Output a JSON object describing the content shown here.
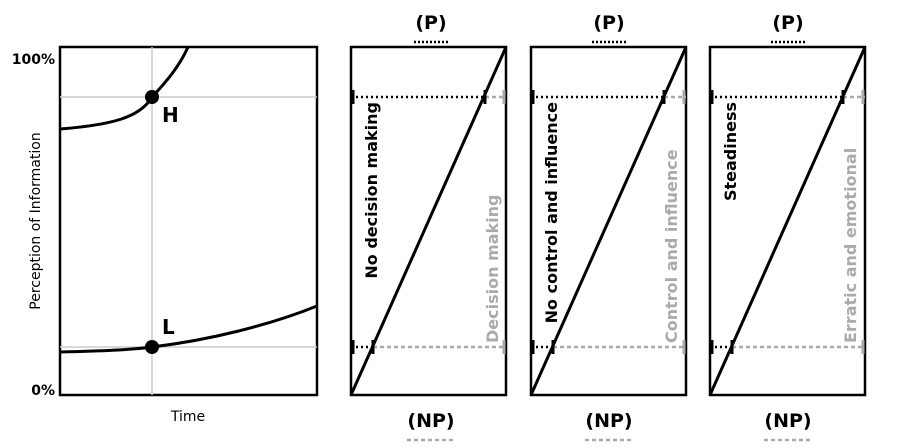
{
  "left_panel": {
    "y_axis_label": "Perception of Information",
    "y_top_label": "100%",
    "y_bottom_label": "0%",
    "x_axis_label": "Time",
    "point_high_label": "H",
    "point_low_label": "L"
  },
  "panels": [
    {
      "top_label": "(P)",
      "bottom_label": "(NP)",
      "upper_text": "No decision making",
      "lower_text": "Decision making"
    },
    {
      "top_label": "(P)",
      "bottom_label": "(NP)",
      "upper_text": "No control and influence",
      "lower_text": "Control and influence"
    },
    {
      "top_label": "(P)",
      "bottom_label": "(NP)",
      "upper_text": "Steadiness",
      "lower_text": "Erratic and emotional"
    }
  ],
  "colors": {
    "ink": "#000000",
    "muted": "#aaaaaa",
    "grid": "#cccccc"
  }
}
